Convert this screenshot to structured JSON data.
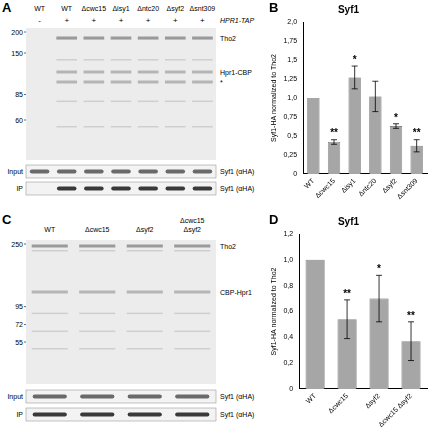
{
  "gels": [
    {
      "panel": "A",
      "lanes": [
        "WT",
        "WT",
        "Δcwc15",
        "Δisy1",
        "Δntc20",
        "Δsyf2",
        "Δsnt309"
      ],
      "tag_row": {
        "label": "HPR1-TAP",
        "marks": [
          "-",
          "+",
          "+",
          "+",
          "+",
          "+",
          "+"
        ]
      },
      "markers": [
        200,
        150,
        85,
        60
      ],
      "bands": [
        "Tho2",
        "Hpr1-CBP",
        "*"
      ],
      "blots": [
        {
          "row": "Input",
          "label": "Syf1 (αHA)"
        },
        {
          "row": "IP",
          "label": "Syf1 (αHA)"
        }
      ]
    },
    {
      "panel": "C",
      "lanes": [
        "WT",
        "Δcwc15",
        "Δsyf2",
        "Δcwc15 Δsyf2"
      ],
      "markers": [
        250,
        95,
        72,
        55
      ],
      "bands": [
        "Tho2",
        "CBP-Hpr1"
      ],
      "blots": [
        {
          "row": "Input",
          "label": "Syf1 (αHA)"
        },
        {
          "row": "IP",
          "label": "Syf1 (αHA)"
        }
      ]
    }
  ],
  "chart_data": [
    {
      "panel": "B",
      "type": "bar",
      "title": "Syf1",
      "y_label": "Syf1-HA normalized to Tho2",
      "categories": [
        "WT",
        "Δcwc15",
        "Δisy1",
        "Δntc20",
        "Δsyf2",
        "Δsnt309"
      ],
      "values": [
        1.0,
        0.42,
        1.27,
        1.02,
        0.63,
        0.37
      ],
      "errors": [
        0,
        0.03,
        0.15,
        0.2,
        0.03,
        0.08
      ],
      "significance": [
        null,
        "**",
        "*",
        null,
        "*",
        "**"
      ],
      "color": "#a6a6a6",
      "ylim": [
        0,
        2
      ],
      "yticks": [
        0,
        {
          "value": 0.25,
          "label": "0,25"
        },
        {
          "value": 0.5,
          "label": "0,5"
        },
        {
          "value": 0.75,
          "label": "0,75"
        },
        {
          "value": 1,
          "label": "1,0"
        },
        {
          "value": 1.25,
          "label": "1,25"
        },
        {
          "value": 1.5,
          "label": "1,5"
        },
        {
          "value": 1.75,
          "label": "1,75"
        },
        {
          "value": 2,
          "label": "2,0"
        }
      ],
      "grid": false
    },
    {
      "panel": "D",
      "type": "bar",
      "title": "Syf1",
      "y_label": "Syf1-HA normalized to Tho2",
      "categories": [
        "WT",
        "Δcwc15",
        "Δsyf2",
        "Δcwc15 Δsyf2"
      ],
      "values": [
        1.0,
        0.54,
        0.7,
        0.37
      ],
      "errors": [
        0,
        0.15,
        0.18,
        0.15
      ],
      "significance": [
        null,
        "**",
        "*",
        "**"
      ],
      "color": "#a6a6a6",
      "ylim": [
        0,
        1.2
      ],
      "yticks": [
        0,
        {
          "value": 0.2,
          "label": "0,2"
        },
        {
          "value": 0.4,
          "label": "0,4"
        },
        {
          "value": 0.6,
          "label": "0,6"
        },
        {
          "value": 0.8,
          "label": "0,8"
        },
        {
          "value": 1,
          "label": "1,0"
        },
        {
          "value": 1.2,
          "label": "1,2"
        }
      ],
      "grid": false
    }
  ]
}
